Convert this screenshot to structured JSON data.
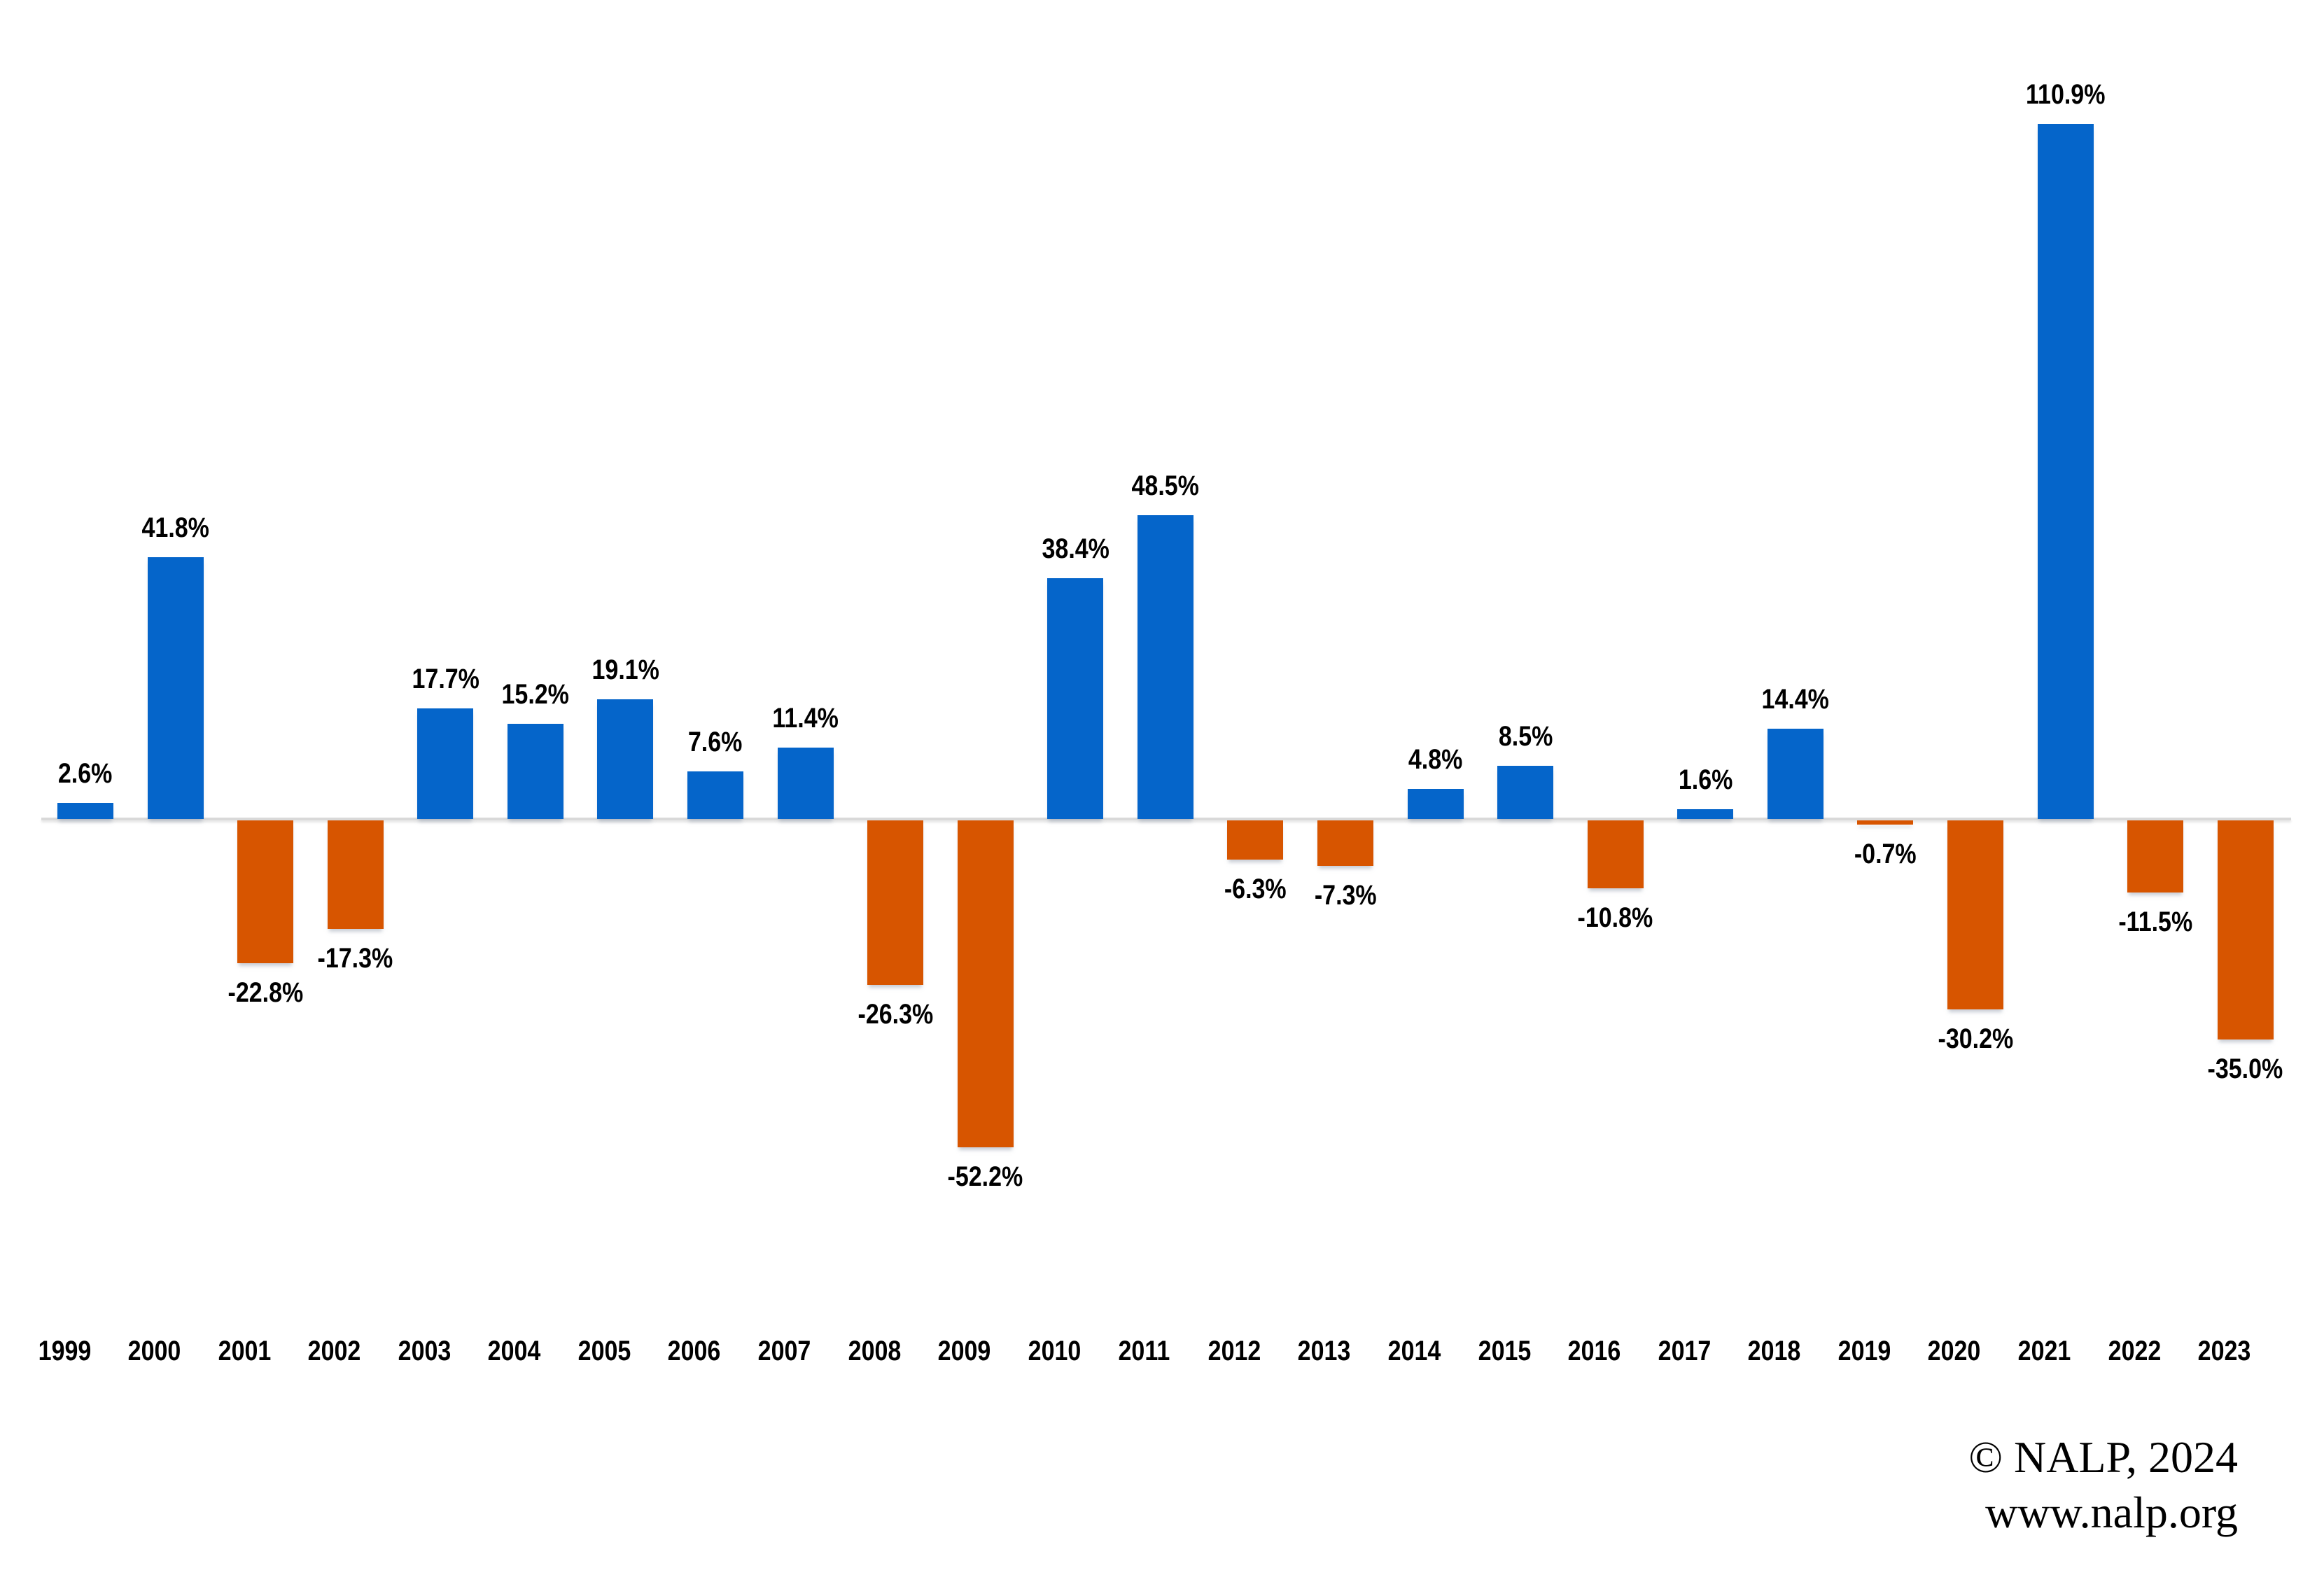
{
  "chart_data": {
    "type": "bar",
    "title": "",
    "xlabel": "",
    "ylabel": "",
    "categories": [
      "1999",
      "2000",
      "2001",
      "2002",
      "2003",
      "2004",
      "2005",
      "2006",
      "2007",
      "2008",
      "2009",
      "2010",
      "2011",
      "2012",
      "2013",
      "2014",
      "2015",
      "2016",
      "2017",
      "2018",
      "2019",
      "2020",
      "2021",
      "2022",
      "2023"
    ],
    "values": [
      2.6,
      41.8,
      -22.8,
      -17.3,
      17.7,
      15.2,
      19.1,
      7.6,
      11.4,
      -26.3,
      -52.2,
      38.4,
      48.5,
      -6.3,
      -7.3,
      4.8,
      8.5,
      -10.8,
      1.6,
      14.4,
      -0.7,
      -30.2,
      110.9,
      -11.5,
      -35.0
    ],
    "value_labels": [
      "2.6%",
      "41.8%",
      "-22.8%",
      "-17.3%",
      "17.7%",
      "15.2%",
      "19.1%",
      "7.6%",
      "11.4%",
      "-26.3%",
      "-52.2%",
      "38.4%",
      "48.5%",
      "-6.3%",
      "-7.3%",
      "4.8%",
      "8.5%",
      "-10.8%",
      "1.6%",
      "14.4%",
      "-0.7%",
      "-30.2%",
      "110.9%",
      "-11.5%",
      "-35.0%"
    ],
    "positive_color": "#0565CA",
    "negative_color": "#D75500",
    "axis_line_color": "#D9D9D9",
    "label_color": "#000000",
    "ylim": [
      -52.2,
      110.9
    ],
    "grid": false,
    "legend": false,
    "data_labels": true
  },
  "footer": {
    "line1": "© NALP, 2024",
    "line2": "www.nalp.org"
  }
}
